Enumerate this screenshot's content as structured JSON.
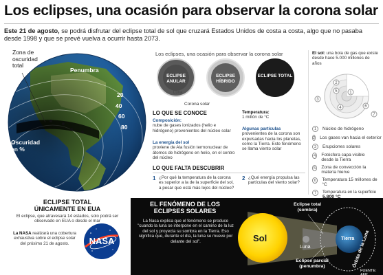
{
  "header": {
    "title": "Los eclipses, una ocasión para observar la corona solar",
    "lead_bold": "Este 21 de agosto,",
    "lead_text": " se podrá disfrutar del eclipse total de sol que cruzará Estados Unidos de costa a costa, algo que no pasaba desde 1998 y que se prevé vuelva a ocurrir hasta 2073."
  },
  "globe": {
    "zona_label": "Zona de oscuridad total",
    "penumbra_label": "Penumbra",
    "oscuridad_label": "Oscuridad en %",
    "percent_labels": [
      "20",
      "40",
      "60",
      "80"
    ]
  },
  "eclipse_types": {
    "section_title": "Los eclipses, una ocasión para observar la corona solar",
    "items": [
      {
        "label": "ECLIPSE ANULAR"
      },
      {
        "label": "ECLIPSE HÍBRIDO"
      },
      {
        "label": "ECLIPSE TOTAL"
      }
    ],
    "luna_label": "Luna",
    "corona_label": "Corona solar"
  },
  "known": {
    "heading": "LO QUE SE CONOCE",
    "composicion_title": "Composición:",
    "composicion_text": "nube de gases ionizados (helio e hidrógeno) provenientes del núcleo solar",
    "energia_title": "La energía del sol",
    "energia_text": "proviene de Ala fusión termonuclear de átomos de hidrógeno en helio, en el centro del núcleo",
    "temp_title": "Temperatura:",
    "temp_text": "1 millón de °C",
    "particulas_title": "Algunas partículas",
    "particulas_text": "provenientes de la corona son expulsadas hacia los planetas, como la Tierra. Este fenómeno se llama viento solar"
  },
  "unknown": {
    "heading": "LO QUE FALTA DESCUBRIR",
    "q1_num": "1",
    "q1_text": "¿Por qué la temperatura de la corona es superior a la de la superficie del sol, a pesar que está más lejos del núcleo?",
    "q2_num": "2",
    "q2_text": "¿Qué energía propulsa las partículas del viento solar?"
  },
  "sun_structure": {
    "intro_bold": "El sol:",
    "intro_text": " una bola de gas que existe desde hace 5.000 millones de años",
    "layers": [
      {
        "num": "1",
        "label": "Núcleo de hidrógeno"
      },
      {
        "num": "2",
        "label": "Los gases van hacia el exterior"
      },
      {
        "num": "3",
        "label": "Erupciones solares"
      },
      {
        "num": "4",
        "label": "Fotósfera capa visible desde la Tierra"
      },
      {
        "num": "5",
        "label": "Zona de convección la materia hierve"
      },
      {
        "num": "6",
        "label": "Temperatura 15 millones de °C"
      },
      {
        "num": "7",
        "label": "Temperatura en la superficie"
      }
    ],
    "surface_temp": "5,800 °C"
  },
  "eua": {
    "heading": "ECLIPSE TOTAL ÚNICAMENTE EN EUA",
    "text": "El eclipse, que atravesará 14 estados, solo podrá ser observado en EUA o desde el mar",
    "nasa_bold": "La NASA",
    "nasa_text": " realizará una cobertura exhaustiva sobre el eclipse solar del próximo 21 de agosto.",
    "logo": "NASA"
  },
  "phenomenon": {
    "heading": "EL FENÓMENO DE LOS ECLIPSES SOLARES",
    "text": "La Nasa explica que el fenómeno se produce \"cuando la luna se interpone en el camino de la luz del sol y proyecta su sombra en la Tierra. Eso significa que, durante el día, la luna se mueve por delante del sol\".",
    "sol_label": "Sol",
    "luna_label": "Luna",
    "tierra_label": "Tierra",
    "total_label": "Eclipse total (sombra)",
    "parcial_label": "Eclipse parcial (penumbra)",
    "orbita_label": "Órbita de la Luna"
  },
  "source": "FUENTE: AFP"
}
